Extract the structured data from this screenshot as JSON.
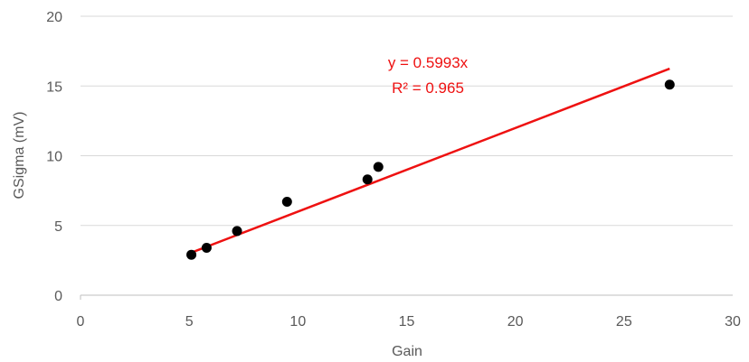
{
  "chart_data": {
    "type": "scatter",
    "title": "",
    "xlabel": "Gain",
    "ylabel": "GSigma (mV)",
    "xlim": [
      0,
      30
    ],
    "ylim": [
      0,
      20
    ],
    "xticks": [
      0,
      5,
      10,
      15,
      20,
      25,
      30
    ],
    "yticks": [
      0,
      5,
      10,
      15,
      20
    ],
    "x_tick_labels": [
      "0",
      "5",
      "10",
      "15",
      "20",
      "25",
      "30"
    ],
    "y_tick_labels": [
      "0",
      "5",
      "10",
      "15",
      "20"
    ],
    "grid": "horizontal",
    "series": [
      {
        "points": [
          {
            "x": 5.1,
            "y": 2.9
          },
          {
            "x": 5.8,
            "y": 3.4
          },
          {
            "x": 7.2,
            "y": 4.6
          },
          {
            "x": 9.5,
            "y": 6.7
          },
          {
            "x": 13.2,
            "y": 8.3
          },
          {
            "x": 13.7,
            "y": 9.2
          },
          {
            "x": 27.1,
            "y": 15.1
          }
        ],
        "color": "#000000"
      }
    ],
    "trendline": {
      "type": "linear-through-origin",
      "slope": 0.5993,
      "x_range": [
        5.1,
        27.1
      ],
      "color": "#ee1111",
      "equation": "y = 0.5993x",
      "r_squared": "R² = 0.965"
    },
    "colors": {
      "grid": "#d9d9d9",
      "axis": "#bfbfbf",
      "text": "#595959"
    }
  }
}
